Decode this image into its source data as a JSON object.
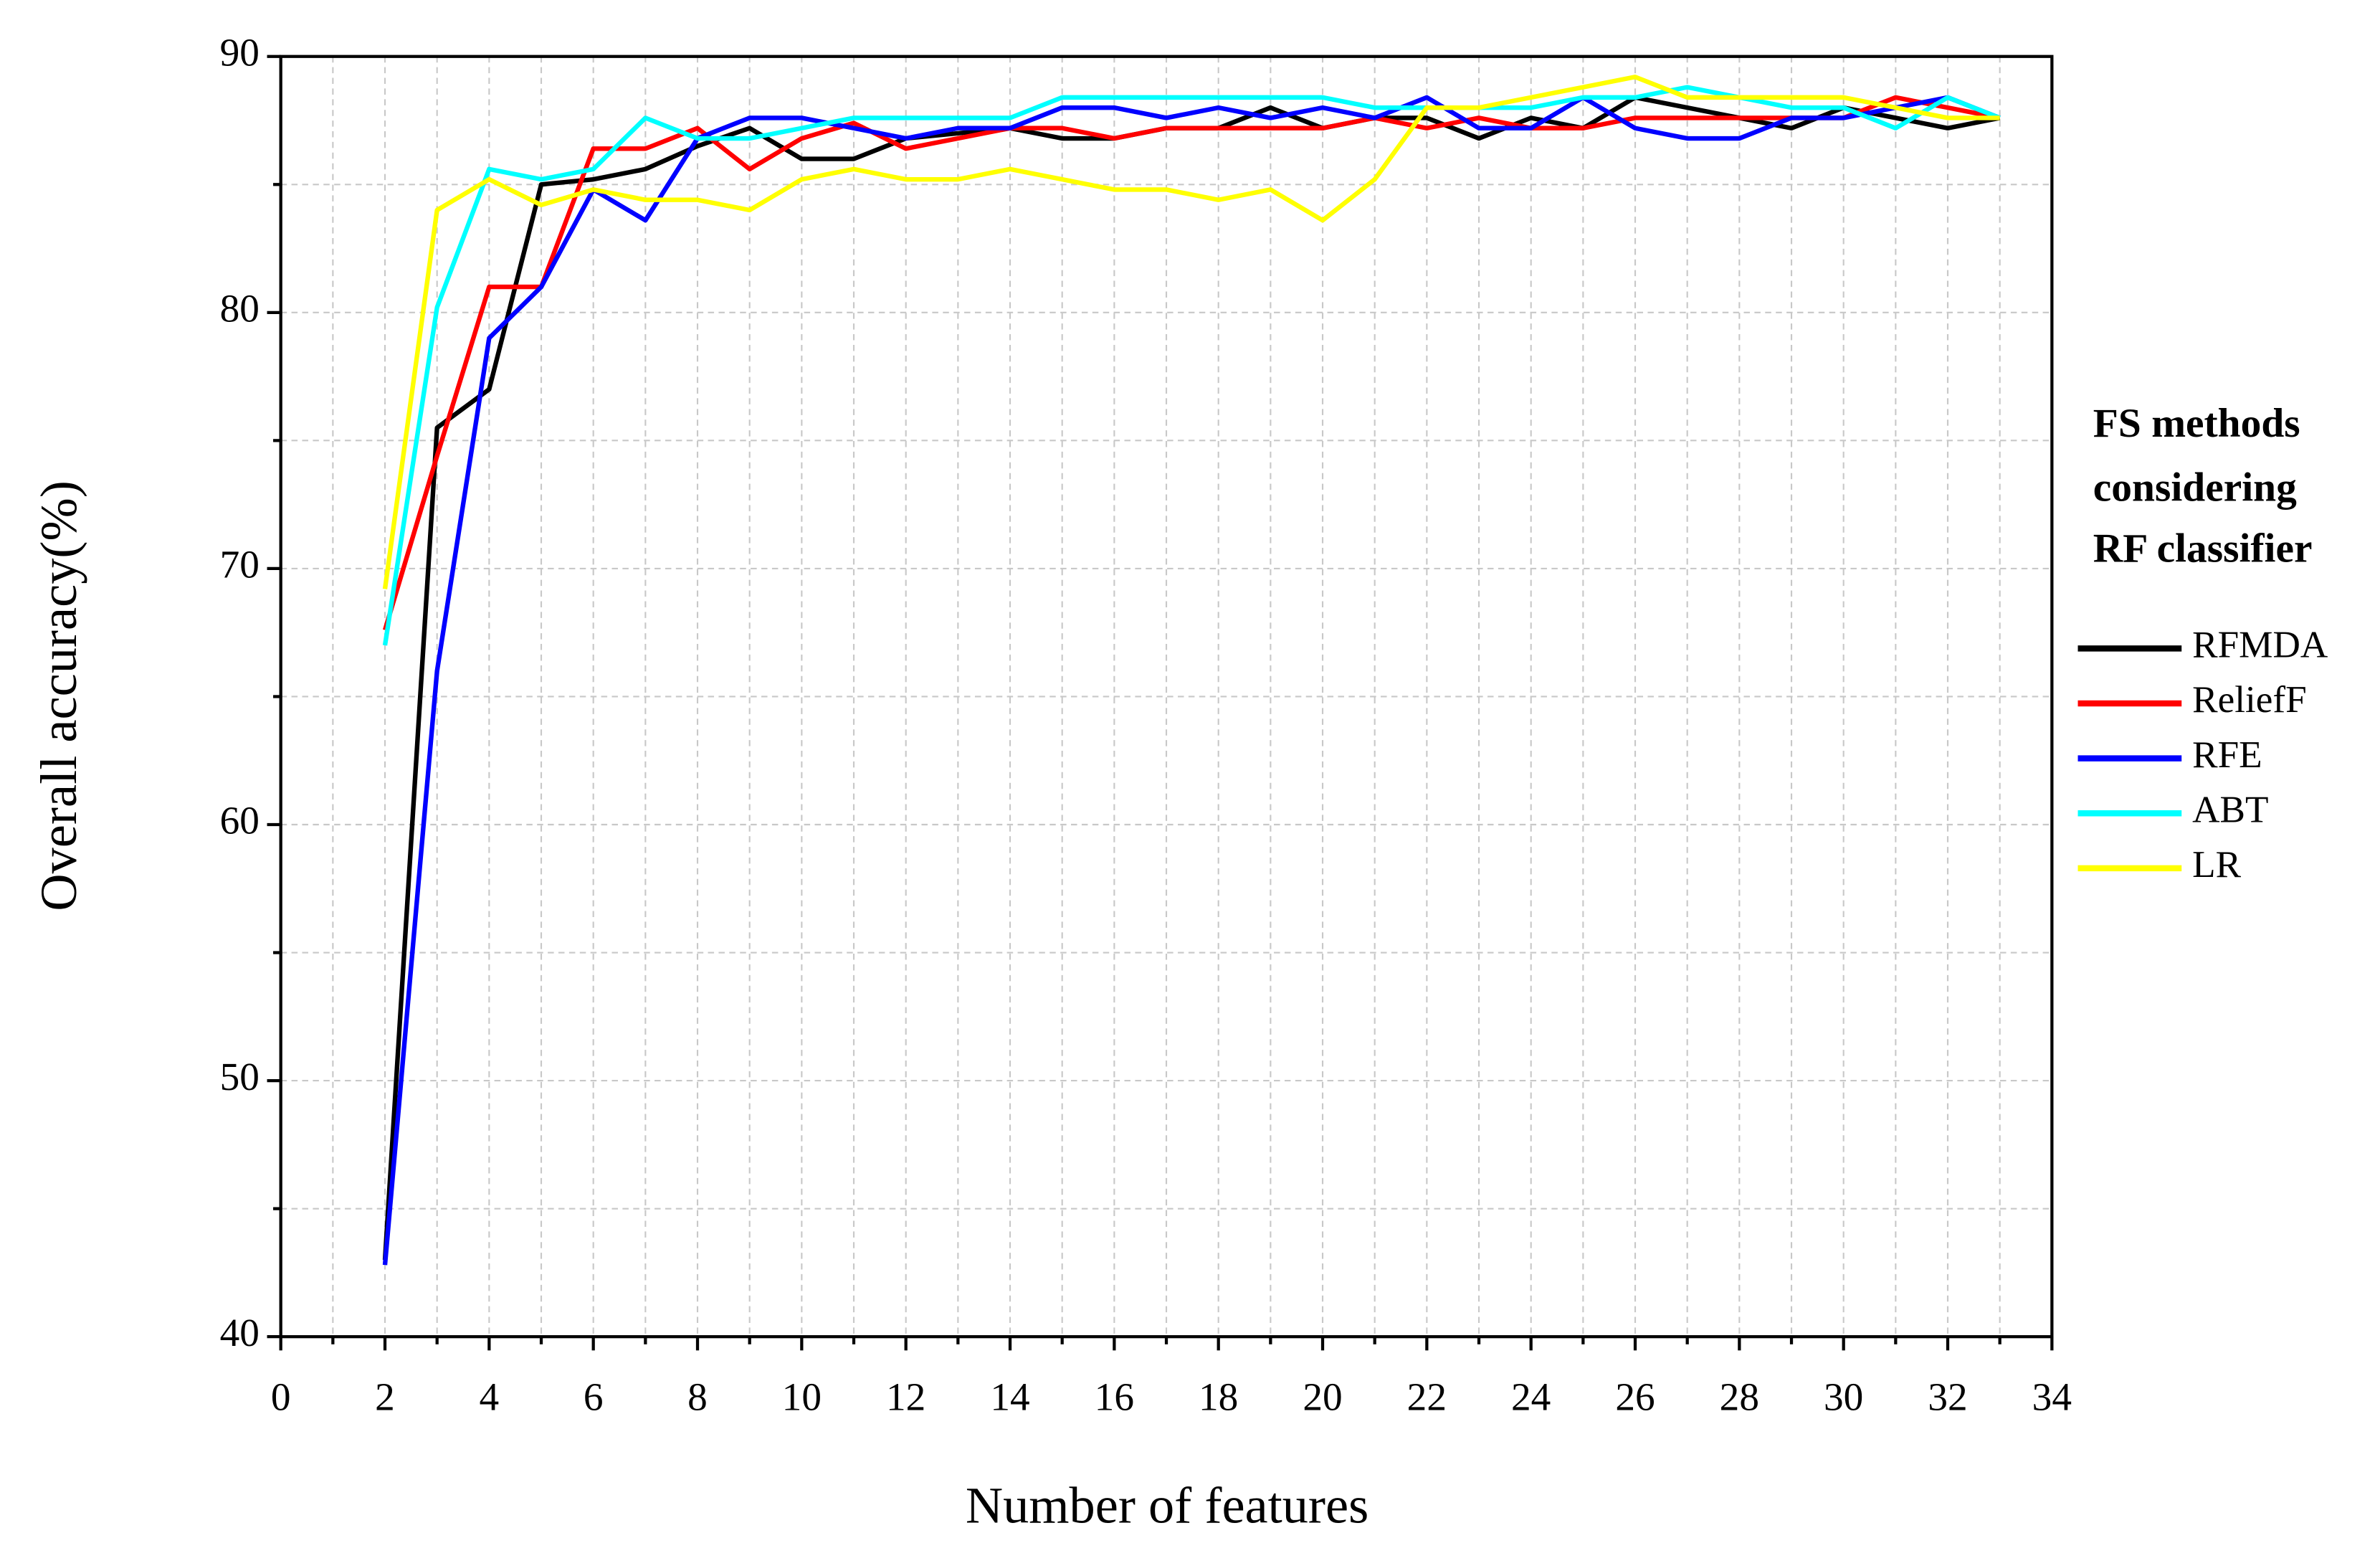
{
  "chart_data": {
    "type": "line",
    "x_label": "Number of features",
    "y_label": "Overall accuracy(%)",
    "legend_title": [
      "FS methods",
      "considering",
      "RF classifier"
    ],
    "legend_position": "right",
    "x": [
      2,
      3,
      4,
      5,
      6,
      7,
      8,
      9,
      10,
      11,
      12,
      13,
      14,
      15,
      16,
      17,
      18,
      19,
      20,
      21,
      22,
      23,
      24,
      25,
      26,
      27,
      28,
      29,
      30,
      31,
      32,
      33
    ],
    "series": [
      {
        "name": "RFMDA",
        "color": "#000000",
        "values": [
          43,
          75.5,
          77,
          85,
          85.2,
          85.6,
          86.5,
          87.2,
          86,
          86,
          86.8,
          87,
          87.2,
          86.8,
          86.8,
          87.2,
          87.2,
          88,
          87.2,
          87.6,
          87.6,
          86.8,
          87.6,
          87.2,
          88.4,
          88,
          87.6,
          87.2,
          88,
          87.6,
          87.2,
          87.6
        ]
      },
      {
        "name": "ReliefF",
        "color": "#ff0000",
        "values": [
          67.6,
          74.4,
          81,
          81,
          86.4,
          86.4,
          87.2,
          85.6,
          86.8,
          87.4,
          86.4,
          86.8,
          87.2,
          87.2,
          86.8,
          87.2,
          87.2,
          87.2,
          87.2,
          87.6,
          87.2,
          87.6,
          87.2,
          87.2,
          87.6,
          87.6,
          87.6,
          87.6,
          87.6,
          88.4,
          88,
          87.6
        ]
      },
      {
        "name": "RFE",
        "color": "#0000ff",
        "values": [
          42.8,
          66,
          79,
          81,
          84.8,
          83.6,
          86.8,
          87.6,
          87.6,
          87.2,
          86.8,
          87.2,
          87.2,
          88,
          88,
          87.6,
          88,
          87.6,
          88,
          87.6,
          88.4,
          87.2,
          87.2,
          88.4,
          87.2,
          86.8,
          86.8,
          87.6,
          87.6,
          88,
          88.4,
          87.6
        ]
      },
      {
        "name": "ABT",
        "color": "#00ffff",
        "values": [
          67,
          80.2,
          85.6,
          85.2,
          85.6,
          87.6,
          86.8,
          86.8,
          87.2,
          87.6,
          87.6,
          87.6,
          87.6,
          88.4,
          88.4,
          88.4,
          88.4,
          88.4,
          88.4,
          88,
          88,
          88,
          88,
          88.4,
          88.4,
          88.8,
          88.4,
          88,
          88,
          87.2,
          88.4,
          87.6
        ]
      },
      {
        "name": "LR",
        "color": "#ffff00",
        "values": [
          69.2,
          84,
          85.2,
          84.2,
          84.8,
          84.4,
          84.4,
          84,
          85.2,
          85.6,
          85.2,
          85.2,
          85.6,
          85.2,
          84.8,
          84.8,
          84.4,
          84.8,
          83.6,
          85.2,
          88,
          88,
          88.4,
          88.8,
          89.2,
          88.4,
          88.4,
          88.4,
          88.4,
          88,
          87.6,
          87.6
        ]
      }
    ],
    "xlim": [
      0,
      34
    ],
    "xticks": [
      0,
      2,
      4,
      6,
      8,
      10,
      12,
      14,
      16,
      18,
      20,
      22,
      24,
      26,
      28,
      30,
      32,
      34
    ],
    "ylim": [
      40,
      90
    ],
    "yticks": [
      40,
      50,
      60,
      70,
      80,
      90
    ],
    "grid": true
  }
}
